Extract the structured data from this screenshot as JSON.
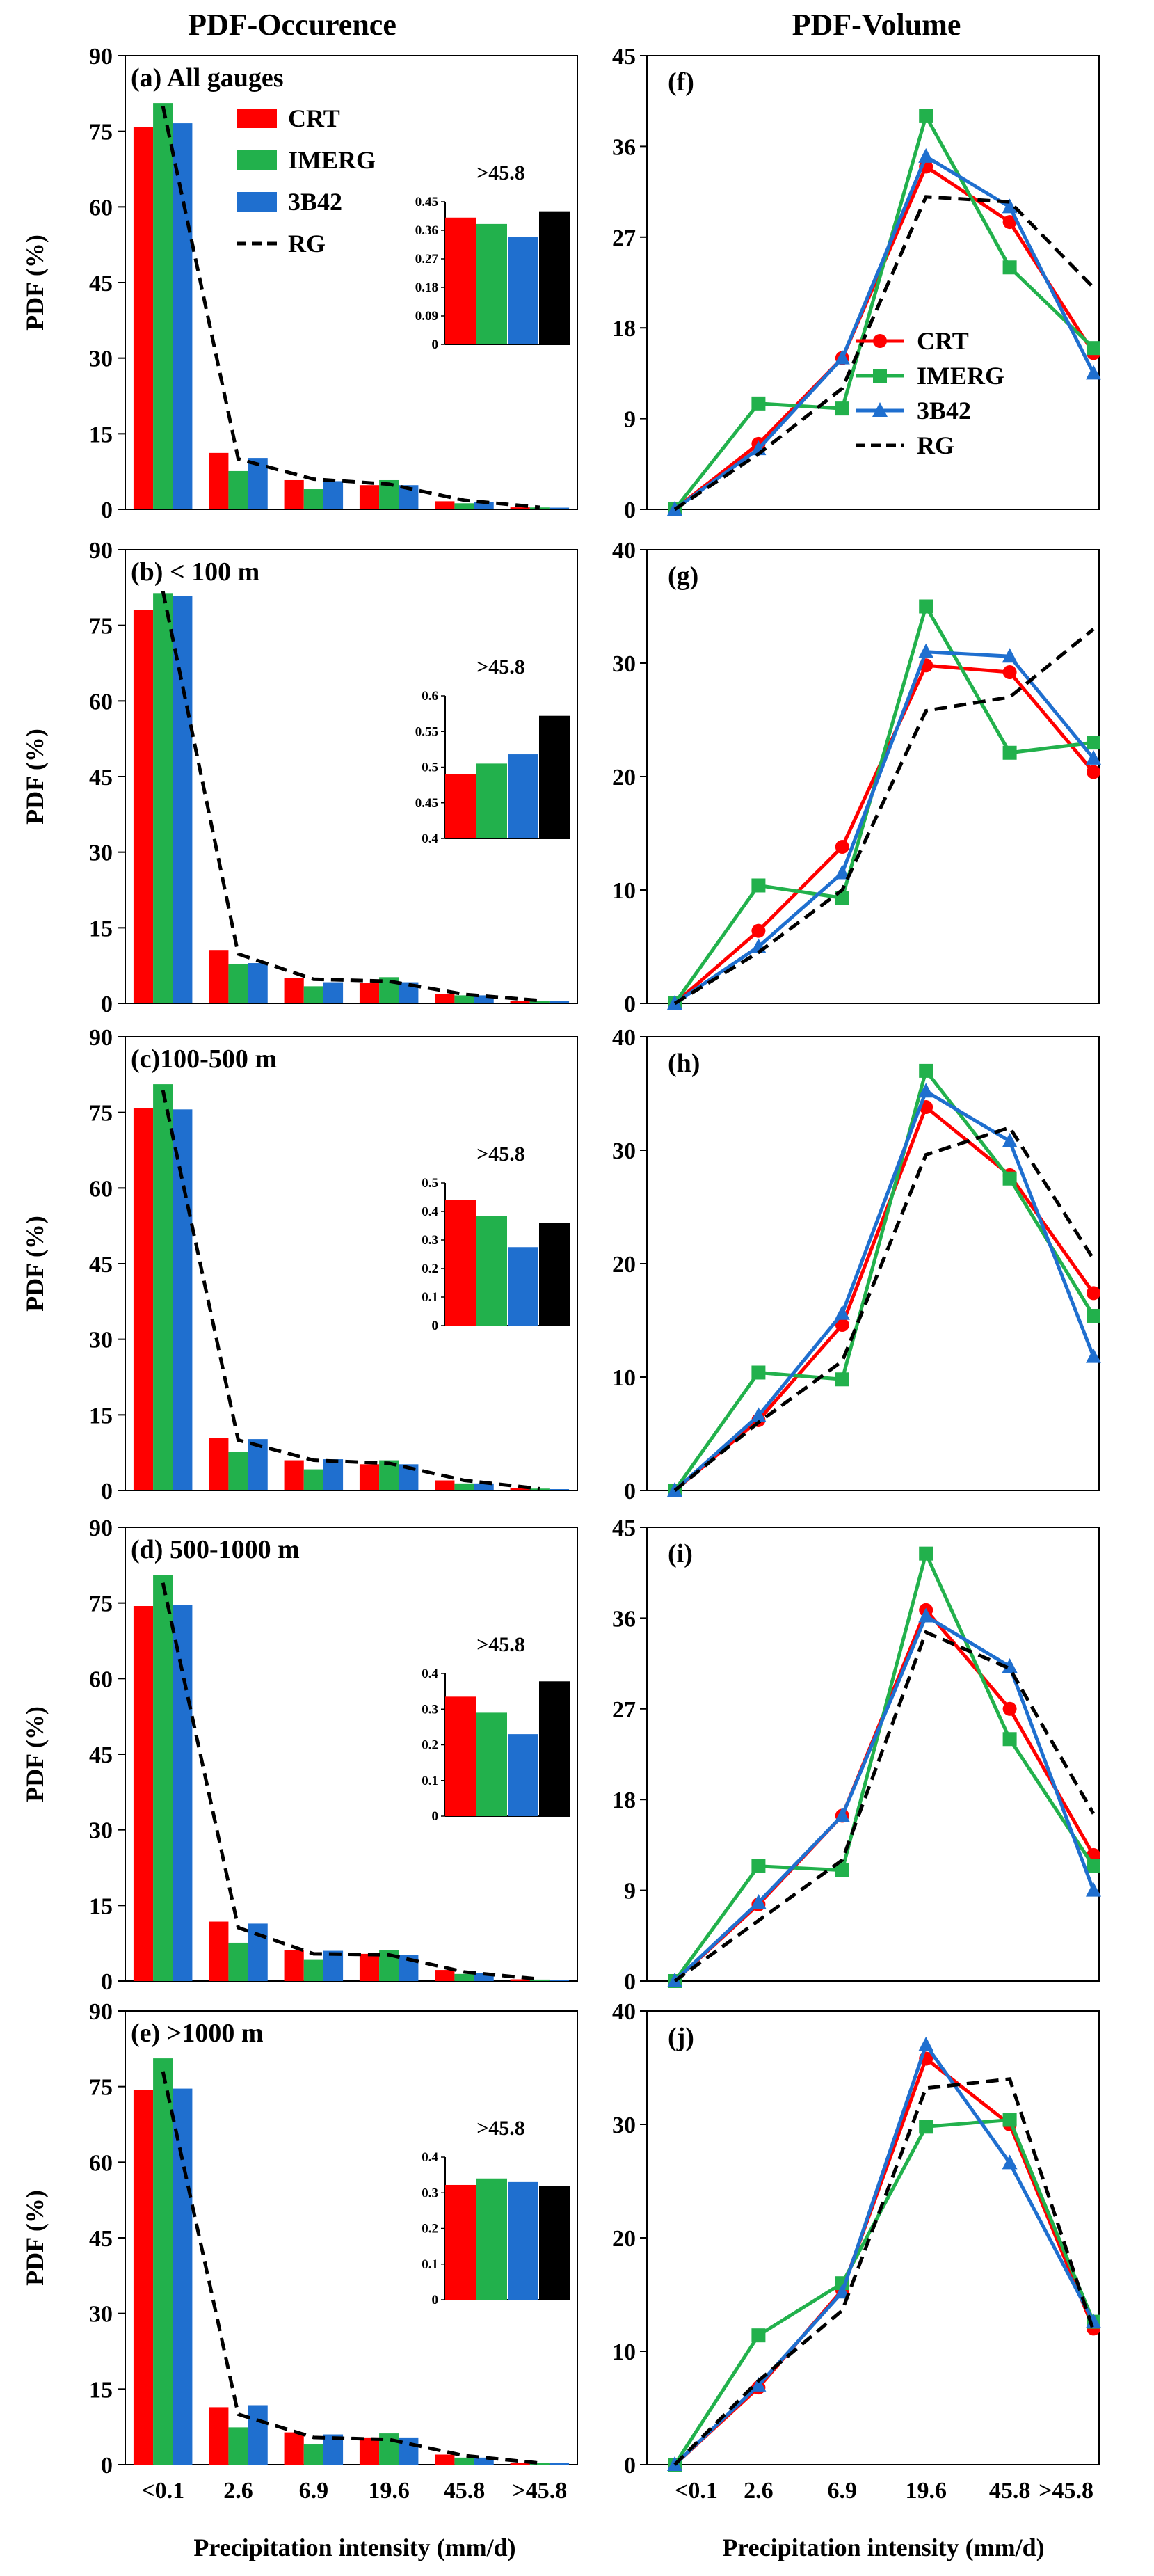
{
  "column_titles": {
    "left": "PDF-Occurence",
    "right": "PDF-Volume"
  },
  "x_axis_title": "Precipitation intensity (mm/d)",
  "legend": {
    "entries": [
      "CRT",
      "IMERG",
      "3B42",
      "RG"
    ],
    "colors": {
      "CRT": "#ff0000",
      "IMERG": "#22b14c",
      "3B42": "#1f6fcf",
      "RG": "#000000"
    }
  },
  "chart_data": [
    {
      "panel": "(a)",
      "title": "(a) All gauges",
      "type": "bar",
      "categories": [
        "<0.1",
        "2.6",
        "6.9",
        "19.6",
        "45.8",
        ">45.8"
      ],
      "ylabel": "PDF (%)",
      "ylim": [
        0,
        90
      ],
      "yticks": [
        0,
        15,
        30,
        45,
        60,
        75,
        90
      ],
      "series": [
        {
          "name": "CRT",
          "values": [
            75.8,
            11.2,
            5.8,
            4.8,
            1.6,
            0.4
          ]
        },
        {
          "name": "IMERG",
          "values": [
            80.6,
            7.6,
            4.0,
            5.8,
            1.2,
            0.38
          ]
        },
        {
          "name": "3B42",
          "values": [
            76.6,
            10.2,
            5.6,
            4.8,
            1.4,
            0.34
          ]
        }
      ],
      "line": {
        "name": "RG",
        "values": [
          80,
          10,
          6,
          5,
          1.8,
          0.42
        ]
      },
      "inset": {
        "title": ">45.8",
        "ylim": [
          0,
          0.45
        ],
        "yticks": [
          "0",
          "0.09",
          "0.18",
          "0.27",
          "0.36",
          "0.45"
        ],
        "values": [
          0.4,
          0.38,
          0.34,
          0.42
        ]
      }
    },
    {
      "panel": "(b)",
      "title": "(b) < 100 m",
      "type": "bar",
      "categories": [
        "<0.1",
        "2.6",
        "6.9",
        "19.6",
        "45.8",
        ">45.8"
      ],
      "ylabel": "PDF (%)",
      "ylim": [
        0,
        90
      ],
      "yticks": [
        0,
        15,
        30,
        45,
        60,
        75,
        90
      ],
      "series": [
        {
          "name": "CRT",
          "values": [
            78.0,
            10.6,
            5.0,
            4.0,
            1.8,
            0.49
          ]
        },
        {
          "name": "IMERG",
          "values": [
            81.4,
            7.8,
            3.4,
            5.2,
            1.6,
            0.5
          ]
        },
        {
          "name": "3B42",
          "values": [
            80.8,
            8.0,
            4.2,
            4.2,
            1.6,
            0.52
          ]
        }
      ],
      "line": {
        "name": "RG",
        "values": [
          81.8,
          9.8,
          4.8,
          4.4,
          1.8,
          0.57
        ]
      },
      "inset": {
        "title": ">45.8",
        "ylim": [
          0.4,
          0.6
        ],
        "yticks": [
          "0.4",
          "0.45",
          "0.5",
          "0.55",
          "0.6"
        ],
        "values": [
          0.49,
          0.505,
          0.518,
          0.572
        ]
      }
    },
    {
      "panel": "(c)",
      "title": "(c)100-500 m",
      "type": "bar",
      "categories": [
        "<0.1",
        "2.6",
        "6.9",
        "19.6",
        "45.8",
        ">45.8"
      ],
      "ylabel": "PDF (%)",
      "ylim": [
        0,
        90
      ],
      "yticks": [
        0,
        15,
        30,
        45,
        60,
        75,
        90
      ],
      "series": [
        {
          "name": "CRT",
          "values": [
            75.8,
            10.4,
            6.0,
            5.2,
            2.0,
            0.44
          ]
        },
        {
          "name": "IMERG",
          "values": [
            80.6,
            7.6,
            4.2,
            6.0,
            1.4,
            0.38
          ]
        },
        {
          "name": "3B42",
          "values": [
            75.6,
            10.2,
            6.2,
            5.2,
            1.4,
            0.27
          ]
        }
      ],
      "line": {
        "name": "RG",
        "values": [
          79.4,
          10.0,
          6.0,
          5.4,
          2.0,
          0.36
        ]
      },
      "inset": {
        "title": ">45.8",
        "ylim": [
          0,
          0.5
        ],
        "yticks": [
          "0",
          "0.1",
          "0.2",
          "0.3",
          "0.4",
          "0.5"
        ],
        "values": [
          0.44,
          0.385,
          0.275,
          0.36
        ]
      }
    },
    {
      "panel": "(d)",
      "title": "(d) 500-1000 m",
      "type": "bar",
      "categories": [
        "<0.1",
        "2.6",
        "6.9",
        "19.6",
        "45.8",
        ">45.8"
      ],
      "ylabel": "PDF (%)",
      "ylim": [
        0,
        90
      ],
      "yticks": [
        0,
        15,
        30,
        45,
        60,
        75,
        90
      ],
      "series": [
        {
          "name": "CRT",
          "values": [
            74.4,
            11.8,
            6.2,
            5.4,
            2.2,
            0.34
          ]
        },
        {
          "name": "IMERG",
          "values": [
            80.6,
            7.6,
            4.2,
            6.2,
            1.4,
            0.29
          ]
        },
        {
          "name": "3B42",
          "values": [
            74.6,
            11.4,
            6.0,
            5.2,
            1.6,
            0.23
          ]
        }
      ],
      "line": {
        "name": "RG",
        "values": [
          79.0,
          10.6,
          5.4,
          5.2,
          1.8,
          0.38
        ]
      },
      "inset": {
        "title": ">45.8",
        "ylim": [
          0,
          0.4
        ],
        "yticks": [
          "0",
          "0.1",
          "0.2",
          "0.3",
          "0.4"
        ],
        "values": [
          0.335,
          0.29,
          0.23,
          0.378
        ]
      }
    },
    {
      "panel": "(e)",
      "title": "(e) >1000 m",
      "type": "bar",
      "categories": [
        "<0.1",
        "2.6",
        "6.9",
        "19.6",
        "45.8",
        ">45.8"
      ],
      "ylabel": "PDF (%)",
      "ylim": [
        0,
        90
      ],
      "yticks": [
        0,
        15,
        30,
        45,
        60,
        75,
        90
      ],
      "series": [
        {
          "name": "CRT",
          "values": [
            74.4,
            11.4,
            6.4,
            5.4,
            2.0,
            0.32
          ]
        },
        {
          "name": "IMERG",
          "values": [
            80.6,
            7.4,
            4.0,
            6.2,
            1.4,
            0.34
          ]
        },
        {
          "name": "3B42",
          "values": [
            74.6,
            11.8,
            6.0,
            5.4,
            1.4,
            0.33
          ]
        }
      ],
      "line": {
        "name": "RG",
        "values": [
          78.0,
          10.0,
          5.4,
          5.0,
          1.8,
          0.32
        ]
      },
      "inset": {
        "title": ">45.8",
        "ylim": [
          0,
          0.4
        ],
        "yticks": [
          "0",
          "0.1",
          "0.2",
          "0.3",
          "0.4"
        ],
        "values": [
          0.322,
          0.34,
          0.33,
          0.32
        ]
      }
    },
    {
      "panel": "(f)",
      "title": "(f)",
      "type": "line",
      "categories": [
        "<0.1",
        "2.6",
        "6.9",
        "19.6",
        "45.8",
        ">45.8"
      ],
      "ylim": [
        0,
        45
      ],
      "yticks": [
        0,
        9,
        18,
        27,
        36,
        45
      ],
      "series": [
        {
          "name": "CRT",
          "values": [
            0,
            6.5,
            15.0,
            34.0,
            28.5,
            15.5
          ]
        },
        {
          "name": "IMERG",
          "values": [
            0,
            10.5,
            10.0,
            39.0,
            24.0,
            16.0
          ]
        },
        {
          "name": "3B42",
          "values": [
            0,
            6.0,
            15.0,
            35.0,
            30.0,
            13.5
          ]
        },
        {
          "name": "RG",
          "values": [
            0,
            5.5,
            12.0,
            31.0,
            30.5,
            22.0
          ]
        }
      ],
      "legend_labels": [
        "CRT",
        "IMERG",
        "3B42",
        "RG"
      ]
    },
    {
      "panel": "(g)",
      "title": "(g)",
      "type": "line",
      "categories": [
        "<0.1",
        "2.6",
        "6.9",
        "19.6",
        "45.8",
        ">45.8"
      ],
      "ylim": [
        0,
        40
      ],
      "yticks": [
        0,
        10,
        20,
        30,
        40
      ],
      "series": [
        {
          "name": "CRT",
          "values": [
            0,
            6.4,
            13.8,
            29.8,
            29.2,
            20.4
          ]
        },
        {
          "name": "IMERG",
          "values": [
            0,
            10.4,
            9.3,
            35.0,
            22.1,
            23.0
          ]
        },
        {
          "name": "3B42",
          "values": [
            0,
            5.0,
            11.5,
            31.0,
            30.6,
            21.6
          ]
        },
        {
          "name": "RG",
          "values": [
            0,
            4.5,
            10.0,
            25.8,
            27.0,
            33.0
          ]
        }
      ]
    },
    {
      "panel": "(h)",
      "title": "(h)",
      "type": "line",
      "categories": [
        "<0.1",
        "2.6",
        "6.9",
        "19.6",
        "45.8",
        ">45.8"
      ],
      "ylim": [
        0,
        40
      ],
      "yticks": [
        0,
        10,
        20,
        30,
        40
      ],
      "series": [
        {
          "name": "CRT",
          "values": [
            0,
            6.2,
            14.6,
            33.8,
            27.8,
            17.4
          ]
        },
        {
          "name": "IMERG",
          "values": [
            0,
            10.4,
            9.8,
            37.0,
            27.5,
            15.4
          ]
        },
        {
          "name": "3B42",
          "values": [
            0,
            6.6,
            15.6,
            35.2,
            30.8,
            11.8
          ]
        },
        {
          "name": "RG",
          "values": [
            0,
            6.0,
            11.4,
            29.6,
            32.0,
            20.4
          ]
        }
      ]
    },
    {
      "panel": "(i)",
      "title": "(i)",
      "type": "line",
      "categories": [
        "<0.1",
        "2.6",
        "6.9",
        "19.6",
        "45.8",
        ">45.8"
      ],
      "ylim": [
        0,
        45
      ],
      "yticks": [
        0,
        9,
        18,
        27,
        36,
        45
      ],
      "series": [
        {
          "name": "CRT",
          "values": [
            0,
            7.6,
            16.4,
            36.8,
            27.0,
            12.5
          ]
        },
        {
          "name": "IMERG",
          "values": [
            0,
            11.4,
            11.0,
            42.4,
            24.0,
            11.4
          ]
        },
        {
          "name": "3B42",
          "values": [
            0,
            7.8,
            16.4,
            36.2,
            31.2,
            9.0
          ]
        },
        {
          "name": "RG",
          "values": [
            0,
            6.0,
            12.0,
            34.6,
            31.0,
            16.6
          ]
        }
      ]
    },
    {
      "panel": "(j)",
      "title": "(j)",
      "type": "line",
      "categories": [
        "<0.1",
        "2.6",
        "6.9",
        "19.6",
        "45.8",
        ">45.8"
      ],
      "ylim": [
        0,
        40
      ],
      "yticks": [
        0,
        10,
        20,
        30,
        40
      ],
      "series": [
        {
          "name": "CRT",
          "values": [
            0,
            6.8,
            15.4,
            35.8,
            30.0,
            12.0
          ]
        },
        {
          "name": "IMERG",
          "values": [
            0,
            11.4,
            16.0,
            29.8,
            30.4,
            12.6
          ]
        },
        {
          "name": "3B42",
          "values": [
            0,
            7.0,
            15.2,
            37.0,
            26.6,
            12.6
          ]
        },
        {
          "name": "RG",
          "values": [
            0,
            7.4,
            13.6,
            33.2,
            34.0,
            11.8
          ]
        }
      ]
    }
  ]
}
